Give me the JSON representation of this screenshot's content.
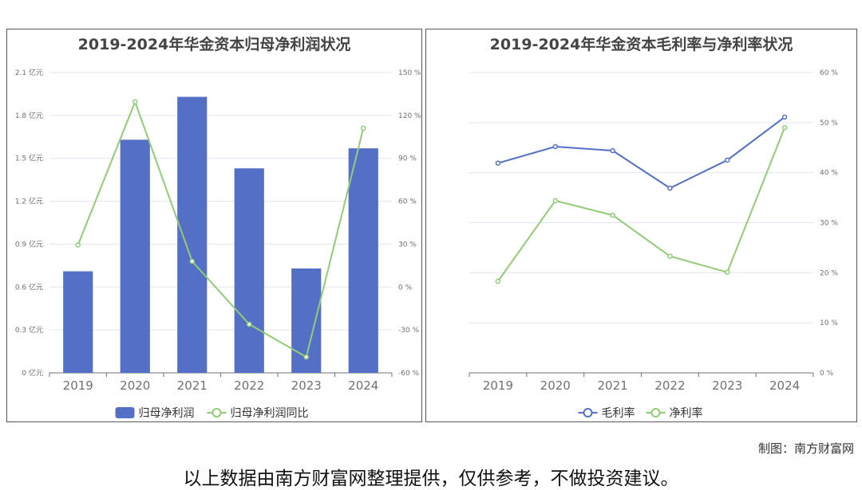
{
  "chart_data": [
    {
      "type": "bar+line",
      "title": "2019-2024年华金资本归母净利润状况",
      "categories": [
        "2019",
        "2020",
        "2021",
        "2022",
        "2023",
        "2024"
      ],
      "series": [
        {
          "name": "归母净利润",
          "type": "bar",
          "axis": "left",
          "unit": "亿元",
          "color": "#5470c6",
          "values": [
            0.71,
            1.63,
            1.93,
            1.43,
            0.73,
            1.57
          ]
        },
        {
          "name": "归母净利润同比",
          "type": "line",
          "axis": "right",
          "unit": "%",
          "color": "#91cc75",
          "values": [
            29.4,
            129.5,
            18.0,
            -26.0,
            -48.9,
            111.1
          ]
        }
      ],
      "y_left": {
        "min": 0,
        "max": 2.1,
        "ticks": [
          "0 亿元",
          "0.3 亿元",
          "0.6 亿元",
          "0.9 亿元",
          "1.2 亿元",
          "1.5 亿元",
          "1.8 亿元",
          "2.1 亿元"
        ]
      },
      "y_right": {
        "min": -60,
        "max": 150,
        "ticks": [
          "-60 %",
          "-30 %",
          "0 %",
          "30 %",
          "60 %",
          "90 %",
          "120 %",
          "150 %"
        ]
      },
      "grid": true,
      "legend": "bottom"
    },
    {
      "type": "line",
      "title": "2019-2024年华金资本毛利率与净利率状况",
      "categories": [
        "2019",
        "2020",
        "2021",
        "2022",
        "2023",
        "2024"
      ],
      "series": [
        {
          "name": "毛利率",
          "color": "#5470c6",
          "values": [
            41.9,
            45.2,
            44.4,
            36.9,
            42.5,
            51.1
          ]
        },
        {
          "name": "净利率",
          "color": "#91cc75",
          "values": [
            18.3,
            34.4,
            31.5,
            23.3,
            20.1,
            49.0
          ]
        }
      ],
      "y_right": {
        "min": 0,
        "max": 60,
        "ticks": [
          "0 %",
          "10 %",
          "20 %",
          "30 %",
          "40 %",
          "50 %",
          "60 %"
        ]
      },
      "grid": true,
      "legend": "bottom"
    }
  ],
  "footer": {
    "credit": "制图：南方财富网",
    "disclaimer": "以上数据由南方财富网整理提供，仅供参考，不做投资建议。"
  }
}
